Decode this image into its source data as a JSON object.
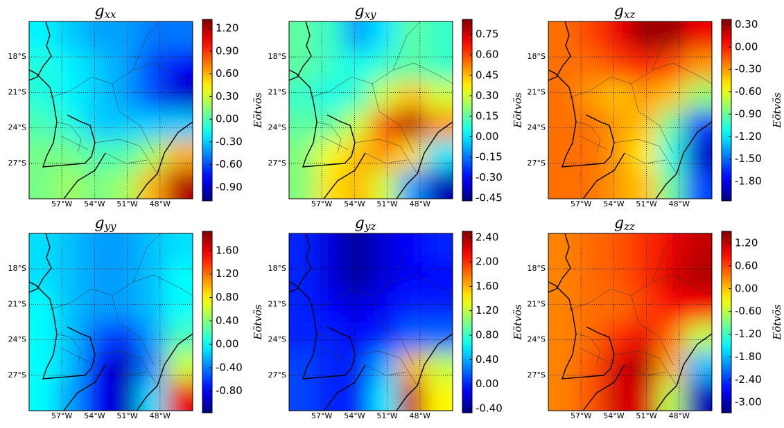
{
  "chart_data": [
    {
      "type": "heatmap",
      "title": "g",
      "title_subscript": "xx",
      "colorscale": "jet",
      "colorbar_label": "Eötvös",
      "xlim": [
        -60,
        -45
      ],
      "ylim": [
        -30,
        -15
      ],
      "clim": [
        -1.08,
        1.32
      ],
      "xticks": [
        {
          "value": -57,
          "label": "57°W"
        },
        {
          "value": -54,
          "label": "54°W"
        },
        {
          "value": -51,
          "label": "51°W"
        },
        {
          "value": -48,
          "label": "48°W"
        }
      ],
      "yticks": [
        {
          "value": -18,
          "label": "18°S"
        },
        {
          "value": -21,
          "label": "21°S"
        },
        {
          "value": -24,
          "label": "24°S"
        },
        {
          "value": -27,
          "label": "27°S"
        }
      ],
      "cticks": [
        {
          "value": 1.2,
          "label": "1.20"
        },
        {
          "value": 0.9,
          "label": "0.90"
        },
        {
          "value": 0.6,
          "label": "0.60"
        },
        {
          "value": 0.3,
          "label": "0.30"
        },
        {
          "value": 0,
          "label": "0.00"
        },
        {
          "value": -0.3,
          "label": "-0.30"
        },
        {
          "value": -0.6,
          "label": "-0.60"
        },
        {
          "value": -0.9,
          "label": "-0.90"
        }
      ],
      "z": [
        [
          -0.2,
          -0.3,
          -0.4,
          -0.4,
          -0.5,
          -0.5
        ],
        [
          -0.1,
          -0.2,
          -0.3,
          -0.4,
          -0.6,
          -0.8
        ],
        [
          -0.1,
          -0.2,
          -0.3,
          -0.4,
          -0.6,
          -0.9
        ],
        [
          0.0,
          -0.1,
          -0.3,
          -0.3,
          -0.3,
          -0.3
        ],
        [
          0.1,
          0.1,
          0.0,
          0.0,
          0.2,
          0.6
        ],
        [
          0.1,
          0.2,
          0.1,
          0.2,
          0.6,
          1.2
        ]
      ]
    },
    {
      "type": "heatmap",
      "title": "g",
      "title_subscript": "xy",
      "colorscale": "jet",
      "colorbar_label": "Eötvös",
      "xlim": [
        -60,
        -45
      ],
      "ylim": [
        -30,
        -15
      ],
      "clim": [
        -0.47,
        0.86
      ],
      "xticks": [
        {
          "value": -57,
          "label": "57°W"
        },
        {
          "value": -54,
          "label": "54°W"
        },
        {
          "value": -51,
          "label": "51°W"
        },
        {
          "value": -48,
          "label": "48°W"
        }
      ],
      "yticks": [
        {
          "value": -18,
          "label": "18°S"
        },
        {
          "value": -21,
          "label": "21°S"
        },
        {
          "value": -24,
          "label": "24°S"
        },
        {
          "value": -27,
          "label": "27°S"
        }
      ],
      "cticks": [
        {
          "value": 0.75,
          "label": "0.75"
        },
        {
          "value": 0.6,
          "label": "0.60"
        },
        {
          "value": 0.45,
          "label": "0.45"
        },
        {
          "value": 0.3,
          "label": "0.30"
        },
        {
          "value": 0.15,
          "label": "0.15"
        },
        {
          "value": 0,
          "label": "0.00"
        },
        {
          "value": -0.15,
          "label": "-0.15"
        },
        {
          "value": -0.3,
          "label": "-0.30"
        },
        {
          "value": -0.45,
          "label": "-0.45"
        }
      ],
      "z": [
        [
          0.15,
          0.1,
          -0.1,
          0.0,
          0.15,
          0.1
        ],
        [
          0.15,
          0.1,
          0.05,
          0.1,
          0.15,
          0.1
        ],
        [
          0.1,
          0.05,
          0.1,
          0.3,
          0.45,
          0.3
        ],
        [
          0.15,
          0.15,
          0.3,
          0.6,
          0.8,
          0.5
        ],
        [
          0.2,
          0.35,
          0.45,
          0.5,
          0.4,
          0.0
        ],
        [
          0.2,
          0.4,
          0.45,
          0.3,
          -0.1,
          -0.4
        ]
      ]
    },
    {
      "type": "heatmap",
      "title": "g",
      "title_subscript": "xz",
      "colorscale": "jet",
      "colorbar_label": "Eötvös",
      "xlim": [
        -60,
        -45
      ],
      "ylim": [
        -30,
        -15
      ],
      "clim": [
        -2.06,
        0.37
      ],
      "xticks": [
        {
          "value": -57,
          "label": "57°W"
        },
        {
          "value": -54,
          "label": "54°W"
        },
        {
          "value": -51,
          "label": "51°W"
        },
        {
          "value": -48,
          "label": "48°W"
        }
      ],
      "yticks": [
        {
          "value": -18,
          "label": "18°S"
        },
        {
          "value": -21,
          "label": "21°S"
        },
        {
          "value": -24,
          "label": "24°S"
        },
        {
          "value": -27,
          "label": "27°S"
        }
      ],
      "cticks": [
        {
          "value": 0.3,
          "label": "0.30"
        },
        {
          "value": 0,
          "label": "0.00"
        },
        {
          "value": -0.3,
          "label": "-0.30"
        },
        {
          "value": -0.6,
          "label": "-0.60"
        },
        {
          "value": -0.9,
          "label": "-0.90"
        },
        {
          "value": -1.2,
          "label": "-1.20"
        },
        {
          "value": -1.5,
          "label": "-1.50"
        },
        {
          "value": -1.8,
          "label": "-1.80"
        }
      ],
      "z": [
        [
          -0.2,
          -0.1,
          0.1,
          0.3,
          0.3,
          0.1
        ],
        [
          -0.2,
          -0.2,
          -0.1,
          0.0,
          -0.1,
          -0.3
        ],
        [
          -0.2,
          -0.3,
          -0.4,
          -0.3,
          -0.4,
          -0.8
        ],
        [
          -0.2,
          -0.2,
          -0.3,
          -0.4,
          -0.9,
          -1.6
        ],
        [
          -0.2,
          -0.2,
          -0.3,
          -0.5,
          -1.1,
          -1.9
        ],
        [
          -0.2,
          -0.2,
          -0.3,
          -0.4,
          -0.9,
          -1.6
        ]
      ]
    },
    {
      "type": "heatmap",
      "title": "g",
      "title_subscript": "yy",
      "colorscale": "jet",
      "colorbar_label": "Eötvös",
      "xlim": [
        -60,
        -45
      ],
      "ylim": [
        -30,
        -15
      ],
      "clim": [
        -1.17,
        1.93
      ],
      "xticks": [
        {
          "value": -57,
          "label": "57°W"
        },
        {
          "value": -54,
          "label": "54°W"
        },
        {
          "value": -51,
          "label": "51°W"
        },
        {
          "value": -48,
          "label": "48°W"
        }
      ],
      "yticks": [
        {
          "value": -18,
          "label": "18°S"
        },
        {
          "value": -21,
          "label": "21°S"
        },
        {
          "value": -24,
          "label": "24°S"
        },
        {
          "value": -27,
          "label": "27°S"
        }
      ],
      "cticks": [
        {
          "value": 1.6,
          "label": "1.60"
        },
        {
          "value": 1.2,
          "label": "1.20"
        },
        {
          "value": 0.8,
          "label": "0.80"
        },
        {
          "value": 0.4,
          "label": "0.40"
        },
        {
          "value": 0,
          "label": "0.00"
        },
        {
          "value": -0.4,
          "label": "-0.40"
        },
        {
          "value": -0.8,
          "label": "-0.80"
        }
      ],
      "z": [
        [
          -0.1,
          -0.2,
          -0.3,
          -0.3,
          -0.2,
          -0.1
        ],
        [
          -0.1,
          -0.2,
          -0.3,
          -0.3,
          -0.2,
          0.0
        ],
        [
          0.0,
          -0.2,
          -0.3,
          -0.3,
          -0.2,
          0.0
        ],
        [
          0.0,
          -0.2,
          -0.5,
          -0.7,
          -0.3,
          0.2
        ],
        [
          0.0,
          -0.2,
          -0.8,
          -1.0,
          -0.4,
          0.6
        ],
        [
          0.0,
          -0.3,
          -0.8,
          -1.0,
          -0.1,
          1.6
        ]
      ]
    },
    {
      "type": "heatmap",
      "title": "g",
      "title_subscript": "yz",
      "colorscale": "jet",
      "colorbar_label": "Eötvös",
      "xlim": [
        -60,
        -45
      ],
      "ylim": [
        -30,
        -15
      ],
      "clim": [
        -0.47,
        2.5
      ],
      "xticks": [
        {
          "value": -57,
          "label": "57°W"
        },
        {
          "value": -54,
          "label": "54°W"
        },
        {
          "value": -51,
          "label": "51°W"
        },
        {
          "value": -48,
          "label": "48°W"
        }
      ],
      "yticks": [
        {
          "value": -18,
          "label": "18°S"
        },
        {
          "value": -21,
          "label": "21°S"
        },
        {
          "value": -24,
          "label": "24°S"
        },
        {
          "value": -27,
          "label": "27°S"
        }
      ],
      "cticks": [
        {
          "value": 2.4,
          "label": "2.40"
        },
        {
          "value": 2,
          "label": "2.00"
        },
        {
          "value": 1.6,
          "label": "1.60"
        },
        {
          "value": 1.2,
          "label": "1.20"
        },
        {
          "value": 0.8,
          "label": "0.80"
        },
        {
          "value": 0.4,
          "label": "0.40"
        },
        {
          "value": 0,
          "label": "0.00"
        },
        {
          "value": -0.4,
          "label": "-0.40"
        }
      ],
      "z": [
        [
          0.0,
          -0.2,
          -0.4,
          -0.2,
          -0.1,
          0.0
        ],
        [
          0.0,
          -0.2,
          -0.4,
          -0.2,
          -0.1,
          -0.1
        ],
        [
          0.0,
          -0.1,
          -0.2,
          -0.1,
          0.0,
          0.0
        ],
        [
          0.0,
          0.0,
          -0.1,
          0.0,
          0.2,
          0.2
        ],
        [
          0.1,
          0.0,
          0.0,
          0.4,
          1.6,
          1.2
        ],
        [
          0.1,
          0.0,
          0.0,
          0.6,
          2.3,
          1.4
        ]
      ]
    },
    {
      "type": "heatmap",
      "title": "g",
      "title_subscript": "zz",
      "colorscale": "jet",
      "colorbar_label": "Eötvös",
      "xlim": [
        -60,
        -45
      ],
      "ylim": [
        -30,
        -15
      ],
      "clim": [
        -3.27,
        1.51
      ],
      "xticks": [
        {
          "value": -57,
          "label": "57°W"
        },
        {
          "value": -54,
          "label": "54°W"
        },
        {
          "value": -51,
          "label": "51°W"
        },
        {
          "value": -48,
          "label": "48°W"
        }
      ],
      "yticks": [
        {
          "value": -18,
          "label": "18°S"
        },
        {
          "value": -21,
          "label": "21°S"
        },
        {
          "value": -24,
          "label": "24°S"
        },
        {
          "value": -27,
          "label": "27°S"
        }
      ],
      "cticks": [
        {
          "value": 1.2,
          "label": "1.20"
        },
        {
          "value": 0.6,
          "label": "0.60"
        },
        {
          "value": 0,
          "label": "0.00"
        },
        {
          "value": -0.6,
          "label": "-0.60"
        },
        {
          "value": -1.2,
          "label": "-1.20"
        },
        {
          "value": -1.8,
          "label": "-1.80"
        },
        {
          "value": -2.4,
          "label": "-2.40"
        },
        {
          "value": -3,
          "label": "-3.00"
        }
      ],
      "z": [
        [
          0.3,
          0.4,
          0.5,
          0.7,
          1.0,
          1.2
        ],
        [
          0.3,
          0.4,
          0.5,
          0.7,
          1.1,
          1.3
        ],
        [
          0.3,
          0.4,
          0.4,
          0.6,
          0.9,
          0.9
        ],
        [
          0.3,
          0.4,
          0.7,
          1.0,
          0.4,
          -0.6
        ],
        [
          0.3,
          0.5,
          1.1,
          1.3,
          0.1,
          -1.8
        ],
        [
          0.3,
          0.5,
          1.1,
          1.1,
          -0.6,
          -3.0
        ]
      ]
    }
  ]
}
